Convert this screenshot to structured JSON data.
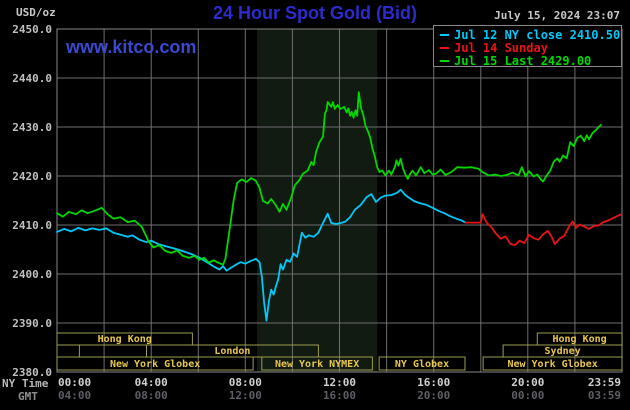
{
  "header": {
    "units_label": "USD/oz",
    "title": "24 Hour Spot Gold (Bid)",
    "date": "July 15, 2024 23:07",
    "watermark": "www.kitco.com"
  },
  "axis_captions": {
    "ny_time": "NY Time",
    "gmt": "GMT"
  },
  "legend": {
    "items": [
      {
        "label": "Jul 12 NY close 2410.50",
        "color": "#00c8f8"
      },
      {
        "label": "Jul 14 Sunday",
        "color": "#e81414"
      },
      {
        "label": "Jul 15 Last 2429.00",
        "color": "#00d800"
      }
    ]
  },
  "colors": {
    "background": "#000000",
    "plot_border": "#888888",
    "gridline": "#6e6e6e",
    "nymex_band": "#121b12",
    "session_border": "#9c9c4e",
    "session_label": "#e8c850",
    "y_tick": "#c0c0c0",
    "x_tick_ny": "#d0d0d0",
    "x_tick_gmt": "#5e5e66",
    "title_blue": "#2b2bd0"
  },
  "chart_data": {
    "type": "line",
    "title": "24 Hour Spot Gold (Bid)",
    "ylabel": "USD/oz",
    "xlabel": "NY Time / GMT",
    "xlim_hours": [
      0,
      24
    ],
    "ylim": [
      2380,
      2450
    ],
    "grid": true,
    "legend_position": "top-right",
    "y_ticks": [
      "2450.0",
      "2440.0",
      "2430.0",
      "2420.0",
      "2410.0",
      "2400.0",
      "2390.0",
      "2380.0"
    ],
    "x_ticks": [
      {
        "ny": "00:00",
        "gmt": "04:00",
        "hour": 0,
        "anchor": "start"
      },
      {
        "ny": "04:00",
        "gmt": "08:00",
        "hour": 4,
        "anchor": "middle"
      },
      {
        "ny": "08:00",
        "gmt": "12:00",
        "hour": 8,
        "anchor": "middle"
      },
      {
        "ny": "12:00",
        "gmt": "16:00",
        "hour": 12,
        "anchor": "middle"
      },
      {
        "ny": "16:00",
        "gmt": "20:00",
        "hour": 16,
        "anchor": "middle"
      },
      {
        "ny": "20:00",
        "gmt": "00:00",
        "hour": 20,
        "anchor": "middle"
      },
      {
        "ny": "23:59",
        "gmt": "03:59",
        "hour": 24,
        "anchor": "end"
      }
    ],
    "nymex_band_hours": [
      8.5,
      13.6
    ],
    "sessions": [
      {
        "row": 0,
        "label": "Hong Kong",
        "start": 0,
        "end": 5.75
      },
      {
        "row": 0,
        "label": "Hong Kong",
        "start": 20.4,
        "end": 24
      },
      {
        "row": 1,
        "label": "",
        "start": 0,
        "end": 0.95
      },
      {
        "row": 1,
        "label": "London",
        "start": 3.8,
        "end": 11.1
      },
      {
        "row": 1,
        "label": "Sydney",
        "start": 18.95,
        "end": 24
      },
      {
        "row": 2,
        "label": "New York Globex",
        "start": 0,
        "end": 8.33
      },
      {
        "row": 2,
        "label": "New York NYMEX",
        "start": 8.7,
        "end": 13.4
      },
      {
        "row": 2,
        "label": "NY Globex",
        "start": 13.68,
        "end": 17.33
      },
      {
        "row": 2,
        "label": "New York Globex",
        "start": 18.1,
        "end": 24
      }
    ],
    "series": [
      {
        "name": "Jul 12 NY close",
        "color": "#00c8f8",
        "points": [
          [
            0,
            2408.6
          ],
          [
            0.3,
            2409.2
          ],
          [
            0.6,
            2408.7
          ],
          [
            0.9,
            2409.4
          ],
          [
            1.2,
            2408.9
          ],
          [
            1.5,
            2409.3
          ],
          [
            1.8,
            2409.0
          ],
          [
            2.1,
            2409.3
          ],
          [
            2.4,
            2408.4
          ],
          [
            2.7,
            2408.0
          ],
          [
            3.0,
            2407.6
          ],
          [
            3.2,
            2407.9
          ],
          [
            3.5,
            2407.0
          ],
          [
            3.8,
            2406.5
          ],
          [
            4.0,
            2406.8
          ],
          [
            4.3,
            2406.1
          ],
          [
            4.6,
            2405.7
          ],
          [
            4.9,
            2405.3
          ],
          [
            5.2,
            2404.9
          ],
          [
            5.5,
            2404.4
          ],
          [
            5.8,
            2403.9
          ],
          [
            6.1,
            2403.2
          ],
          [
            6.4,
            2402.3
          ],
          [
            6.7,
            2401.4
          ],
          [
            6.9,
            2400.9
          ],
          [
            7.05,
            2401.6
          ],
          [
            7.2,
            2400.7
          ],
          [
            7.4,
            2401.3
          ],
          [
            7.6,
            2401.9
          ],
          [
            7.8,
            2402.4
          ],
          [
            8.0,
            2402.1
          ],
          [
            8.2,
            2402.6
          ],
          [
            8.45,
            2403.1
          ],
          [
            8.6,
            2402.4
          ],
          [
            8.7,
            2399.5
          ],
          [
            8.8,
            2394.0
          ],
          [
            8.9,
            2390.5
          ],
          [
            9.0,
            2394.5
          ],
          [
            9.1,
            2396.8
          ],
          [
            9.2,
            2395.8
          ],
          [
            9.3,
            2397.5
          ],
          [
            9.4,
            2399.0
          ],
          [
            9.5,
            2402.0
          ],
          [
            9.6,
            2400.9
          ],
          [
            9.75,
            2402.9
          ],
          [
            9.9,
            2402.5
          ],
          [
            10.05,
            2404.2
          ],
          [
            10.2,
            2403.5
          ],
          [
            10.4,
            2408.4
          ],
          [
            10.55,
            2407.4
          ],
          [
            10.7,
            2407.9
          ],
          [
            10.9,
            2407.6
          ],
          [
            11.1,
            2408.4
          ],
          [
            11.3,
            2410.4
          ],
          [
            11.5,
            2412.3
          ],
          [
            11.65,
            2410.4
          ],
          [
            11.85,
            2410.2
          ],
          [
            12.05,
            2410.4
          ],
          [
            12.25,
            2410.7
          ],
          [
            12.45,
            2411.6
          ],
          [
            12.65,
            2413.1
          ],
          [
            12.9,
            2414.1
          ],
          [
            13.15,
            2415.7
          ],
          [
            13.35,
            2416.3
          ],
          [
            13.55,
            2414.7
          ],
          [
            13.75,
            2415.6
          ],
          [
            13.95,
            2416.0
          ],
          [
            14.2,
            2416.1
          ],
          [
            14.45,
            2416.6
          ],
          [
            14.6,
            2417.2
          ],
          [
            14.8,
            2416.1
          ],
          [
            15.0,
            2415.4
          ],
          [
            15.2,
            2414.8
          ],
          [
            15.45,
            2414.4
          ],
          [
            15.7,
            2414.1
          ],
          [
            15.95,
            2413.5
          ],
          [
            16.2,
            2412.9
          ],
          [
            16.45,
            2412.4
          ],
          [
            16.7,
            2411.8
          ],
          [
            16.95,
            2411.3
          ],
          [
            17.15,
            2411.0
          ],
          [
            17.35,
            2410.5
          ]
        ]
      },
      {
        "name": "Jul 14 Sunday",
        "color": "#e81414",
        "points": [
          [
            17.35,
            2410.5
          ],
          [
            17.7,
            2410.5
          ],
          [
            18.0,
            2410.5
          ],
          [
            18.08,
            2412.2
          ],
          [
            18.25,
            2410.5
          ],
          [
            18.45,
            2409.6
          ],
          [
            18.65,
            2408.2
          ],
          [
            18.85,
            2407.2
          ],
          [
            19.05,
            2407.7
          ],
          [
            19.25,
            2406.2
          ],
          [
            19.45,
            2405.9
          ],
          [
            19.65,
            2406.8
          ],
          [
            19.85,
            2406.3
          ],
          [
            20.05,
            2408.0
          ],
          [
            20.25,
            2407.3
          ],
          [
            20.45,
            2407.0
          ],
          [
            20.65,
            2408.1
          ],
          [
            20.85,
            2408.8
          ],
          [
            21.0,
            2407.7
          ],
          [
            21.15,
            2406.1
          ],
          [
            21.35,
            2407.2
          ],
          [
            21.55,
            2407.8
          ],
          [
            21.75,
            2409.7
          ],
          [
            21.9,
            2410.7
          ],
          [
            22.05,
            2409.4
          ],
          [
            22.2,
            2410.1
          ],
          [
            22.4,
            2409.7
          ],
          [
            22.6,
            2409.2
          ],
          [
            22.8,
            2409.8
          ],
          [
            23.0,
            2409.9
          ],
          [
            23.2,
            2410.6
          ],
          [
            23.45,
            2411.0
          ],
          [
            23.7,
            2411.6
          ],
          [
            23.98,
            2412.2
          ]
        ]
      },
      {
        "name": "Jul 15 Last",
        "color": "#00d800",
        "points": [
          [
            0,
            2412.4
          ],
          [
            0.25,
            2411.7
          ],
          [
            0.5,
            2412.7
          ],
          [
            0.8,
            2412.2
          ],
          [
            1.05,
            2413.0
          ],
          [
            1.3,
            2412.4
          ],
          [
            1.6,
            2412.9
          ],
          [
            1.9,
            2413.5
          ],
          [
            2.15,
            2412.2
          ],
          [
            2.4,
            2411.3
          ],
          [
            2.7,
            2411.6
          ],
          [
            3.0,
            2410.6
          ],
          [
            3.3,
            2410.9
          ],
          [
            3.6,
            2409.6
          ],
          [
            3.9,
            2406.6
          ],
          [
            4.1,
            2405.4
          ],
          [
            4.35,
            2405.9
          ],
          [
            4.6,
            2404.7
          ],
          [
            4.85,
            2404.3
          ],
          [
            5.1,
            2404.8
          ],
          [
            5.35,
            2403.7
          ],
          [
            5.6,
            2403.3
          ],
          [
            5.85,
            2403.7
          ],
          [
            6.05,
            2402.9
          ],
          [
            6.25,
            2403.3
          ],
          [
            6.45,
            2402.3
          ],
          [
            6.65,
            2402.8
          ],
          [
            6.85,
            2402.3
          ],
          [
            7.05,
            2401.9
          ],
          [
            7.15,
            2403.0
          ],
          [
            7.3,
            2408.0
          ],
          [
            7.5,
            2415.0
          ],
          [
            7.65,
            2418.6
          ],
          [
            7.85,
            2419.3
          ],
          [
            8.05,
            2418.8
          ],
          [
            8.25,
            2419.6
          ],
          [
            8.45,
            2419.0
          ],
          [
            8.6,
            2417.6
          ],
          [
            8.75,
            2414.9
          ],
          [
            8.95,
            2414.4
          ],
          [
            9.1,
            2415.3
          ],
          [
            9.3,
            2414.0
          ],
          [
            9.45,
            2412.7
          ],
          [
            9.6,
            2414.3
          ],
          [
            9.75,
            2413.1
          ],
          [
            9.95,
            2415.6
          ],
          [
            10.1,
            2418.1
          ],
          [
            10.3,
            2419.2
          ],
          [
            10.45,
            2420.5
          ],
          [
            10.65,
            2421.1
          ],
          [
            10.8,
            2422.9
          ],
          [
            10.9,
            2422.2
          ],
          [
            11.0,
            2424.9
          ],
          [
            11.15,
            2426.9
          ],
          [
            11.3,
            2428.0
          ],
          [
            11.38,
            2432.7
          ],
          [
            11.45,
            2433.5
          ],
          [
            11.5,
            2435.1
          ],
          [
            11.65,
            2434.1
          ],
          [
            11.72,
            2435.1
          ],
          [
            11.8,
            2433.7
          ],
          [
            11.92,
            2434.5
          ],
          [
            12.05,
            2433.7
          ],
          [
            12.2,
            2434.1
          ],
          [
            12.3,
            2433.0
          ],
          [
            12.38,
            2433.8
          ],
          [
            12.45,
            2432.3
          ],
          [
            12.52,
            2433.1
          ],
          [
            12.6,
            2431.9
          ],
          [
            12.68,
            2433.4
          ],
          [
            12.75,
            2432.3
          ],
          [
            12.82,
            2437.1
          ],
          [
            12.92,
            2433.7
          ],
          [
            13.0,
            2432.7
          ],
          [
            13.1,
            2430.3
          ],
          [
            13.2,
            2429.2
          ],
          [
            13.3,
            2427.9
          ],
          [
            13.4,
            2425.6
          ],
          [
            13.5,
            2424.0
          ],
          [
            13.6,
            2421.8
          ],
          [
            13.7,
            2420.8
          ],
          [
            13.82,
            2421.1
          ],
          [
            13.95,
            2420.1
          ],
          [
            14.1,
            2421.1
          ],
          [
            14.2,
            2420.3
          ],
          [
            14.35,
            2421.8
          ],
          [
            14.42,
            2423.2
          ],
          [
            14.5,
            2422.1
          ],
          [
            14.6,
            2423.5
          ],
          [
            14.7,
            2421.5
          ],
          [
            14.8,
            2420.3
          ],
          [
            14.9,
            2419.4
          ],
          [
            15.0,
            2420.4
          ],
          [
            15.1,
            2421.1
          ],
          [
            15.25,
            2420.1
          ],
          [
            15.45,
            2421.8
          ],
          [
            15.6,
            2420.6
          ],
          [
            15.8,
            2421.2
          ],
          [
            15.95,
            2420.3
          ],
          [
            16.1,
            2420.5
          ],
          [
            16.3,
            2421.3
          ],
          [
            16.5,
            2420.2
          ],
          [
            16.75,
            2420.8
          ],
          [
            17.0,
            2421.8
          ],
          [
            17.3,
            2421.7
          ],
          [
            17.6,
            2421.8
          ],
          [
            17.9,
            2421.5
          ],
          [
            18.1,
            2420.7
          ],
          [
            18.35,
            2420.1
          ],
          [
            18.6,
            2420.3
          ],
          [
            18.85,
            2420.0
          ],
          [
            19.1,
            2420.2
          ],
          [
            19.35,
            2420.7
          ],
          [
            19.6,
            2420.1
          ],
          [
            19.75,
            2421.8
          ],
          [
            19.9,
            2419.9
          ],
          [
            20.05,
            2421.0
          ],
          [
            20.25,
            2419.9
          ],
          [
            20.4,
            2420.3
          ],
          [
            20.55,
            2419.3
          ],
          [
            20.65,
            2418.9
          ],
          [
            20.8,
            2420.1
          ],
          [
            20.95,
            2421.1
          ],
          [
            21.1,
            2422.9
          ],
          [
            21.25,
            2423.6
          ],
          [
            21.35,
            2422.9
          ],
          [
            21.5,
            2424.2
          ],
          [
            21.65,
            2423.6
          ],
          [
            21.8,
            2426.9
          ],
          [
            21.95,
            2426.1
          ],
          [
            22.1,
            2427.8
          ],
          [
            22.25,
            2428.2
          ],
          [
            22.4,
            2427.1
          ],
          [
            22.5,
            2428.3
          ],
          [
            22.6,
            2427.5
          ],
          [
            22.75,
            2428.8
          ],
          [
            22.9,
            2429.4
          ],
          [
            23.0,
            2430.0
          ],
          [
            23.1,
            2430.4
          ]
        ]
      }
    ]
  }
}
